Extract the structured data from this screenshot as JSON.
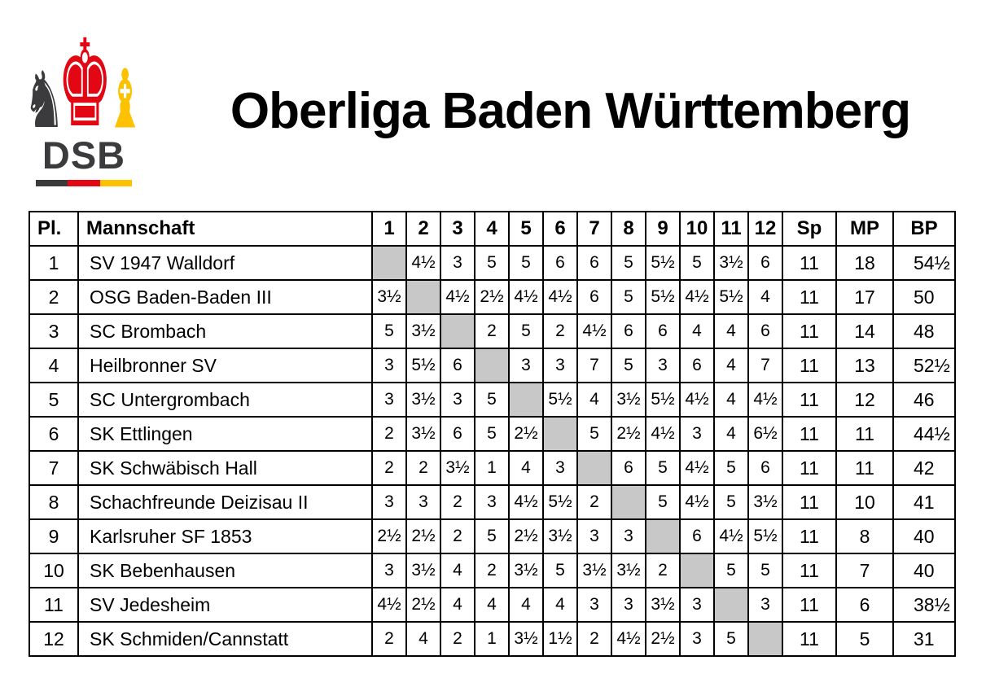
{
  "logo": {
    "text": "DSB",
    "icons": {
      "knight": "♞",
      "king": "♚",
      "bishop": "♝"
    },
    "colors": {
      "dark": "#3b3b3d",
      "red": "#e30613",
      "gold": "#fcc200"
    }
  },
  "title": "Oberliga Baden Württemberg",
  "table": {
    "columns": [
      "Pl.",
      "Mannschaft",
      "1",
      "2",
      "3",
      "4",
      "5",
      "6",
      "7",
      "8",
      "9",
      "10",
      "11",
      "12",
      "Sp",
      "MP",
      "BP"
    ],
    "diagonal_color": "#c8c8c8",
    "rows": [
      {
        "pl": "1",
        "team": "SV 1947 Walldorf",
        "results": [
          "",
          "4½",
          "3",
          "5",
          "5",
          "6",
          "6",
          "5",
          "5½",
          "5",
          "3½",
          "6"
        ],
        "sp": "11",
        "mp": "18",
        "bp": "54½"
      },
      {
        "pl": "2",
        "team": "OSG Baden-Baden III",
        "results": [
          "3½",
          "",
          "4½",
          "2½",
          "4½",
          "4½",
          "6",
          "5",
          "5½",
          "4½",
          "5½",
          "4"
        ],
        "sp": "11",
        "mp": "17",
        "bp": "50"
      },
      {
        "pl": "3",
        "team": "SC Brombach",
        "results": [
          "5",
          "3½",
          "",
          "2",
          "5",
          "2",
          "4½",
          "6",
          "6",
          "4",
          "4",
          "6"
        ],
        "sp": "11",
        "mp": "14",
        "bp": "48"
      },
      {
        "pl": "4",
        "team": "Heilbronner SV",
        "results": [
          "3",
          "5½",
          "6",
          "",
          "3",
          "3",
          "7",
          "5",
          "3",
          "6",
          "4",
          "7"
        ],
        "sp": "11",
        "mp": "13",
        "bp": "52½"
      },
      {
        "pl": "5",
        "team": "SC Untergrombach",
        "results": [
          "3",
          "3½",
          "3",
          "5",
          "",
          "5½",
          "4",
          "3½",
          "5½",
          "4½",
          "4",
          "4½"
        ],
        "sp": "11",
        "mp": "12",
        "bp": "46"
      },
      {
        "pl": "6",
        "team": "SK Ettlingen",
        "results": [
          "2",
          "3½",
          "6",
          "5",
          "2½",
          "",
          "5",
          "2½",
          "4½",
          "3",
          "4",
          "6½"
        ],
        "sp": "11",
        "mp": "11",
        "bp": "44½"
      },
      {
        "pl": "7",
        "team": "SK Schwäbisch Hall",
        "results": [
          "2",
          "2",
          "3½",
          "1",
          "4",
          "3",
          "",
          "6",
          "5",
          "4½",
          "5",
          "6"
        ],
        "sp": "11",
        "mp": "11",
        "bp": "42"
      },
      {
        "pl": "8",
        "team": "Schachfreunde Deizisau II",
        "results": [
          "3",
          "3",
          "2",
          "3",
          "4½",
          "5½",
          "2",
          "",
          "5",
          "4½",
          "5",
          "3½"
        ],
        "sp": "11",
        "mp": "10",
        "bp": "41"
      },
      {
        "pl": "9",
        "team": "Karlsruher SF 1853",
        "results": [
          "2½",
          "2½",
          "2",
          "5",
          "2½",
          "3½",
          "3",
          "3",
          "",
          "6",
          "4½",
          "5½"
        ],
        "sp": "11",
        "mp": "8",
        "bp": "40"
      },
      {
        "pl": "10",
        "team": "SK Bebenhausen",
        "results": [
          "3",
          "3½",
          "4",
          "2",
          "3½",
          "5",
          "3½",
          "3½",
          "2",
          "",
          "5",
          "5"
        ],
        "sp": "11",
        "mp": "7",
        "bp": "40"
      },
      {
        "pl": "11",
        "team": "SV Jedesheim",
        "results": [
          "4½",
          "2½",
          "4",
          "4",
          "4",
          "4",
          "3",
          "3",
          "3½",
          "3",
          "",
          "3"
        ],
        "sp": "11",
        "mp": "6",
        "bp": "38½"
      },
      {
        "pl": "12",
        "team": "SK Schmiden/Cannstatt",
        "results": [
          "2",
          "4",
          "2",
          "1",
          "3½",
          "1½",
          "2",
          "4½",
          "2½",
          "3",
          "5",
          ""
        ],
        "sp": "11",
        "mp": "5",
        "bp": "31"
      }
    ]
  }
}
